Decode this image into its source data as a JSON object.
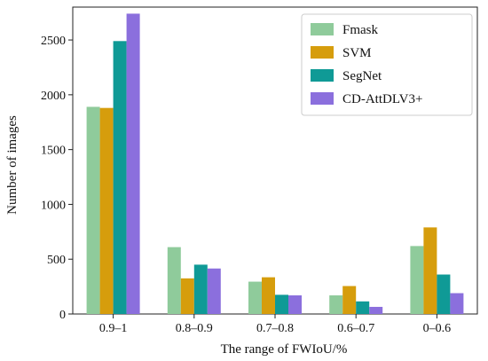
{
  "chart_data": {
    "type": "bar",
    "title": "",
    "xlabel": "The range of FWIoU/%",
    "ylabel": "Number of images",
    "categories": [
      "0.9–1",
      "0.8–0.9",
      "0.7–0.8",
      "0.6–0.7",
      "0–0.6"
    ],
    "series": [
      {
        "name": "Fmask",
        "color": "#8fcb9b",
        "values": [
          1890,
          610,
          295,
          170,
          620
        ]
      },
      {
        "name": "SVM",
        "color": "#d69d0c",
        "values": [
          1880,
          325,
          335,
          255,
          790
        ]
      },
      {
        "name": "SegNet",
        "color": "#0f9a96",
        "values": [
          2490,
          450,
          175,
          115,
          360
        ]
      },
      {
        "name": "CD-AttDLV3+",
        "color": "#8b6fdd",
        "values": [
          2740,
          415,
          170,
          65,
          190
        ]
      }
    ],
    "yticks": [
      0,
      500,
      1000,
      1500,
      2000,
      2500
    ],
    "ylim": [
      0,
      2800
    ],
    "legend": "top-right",
    "grid": false
  }
}
